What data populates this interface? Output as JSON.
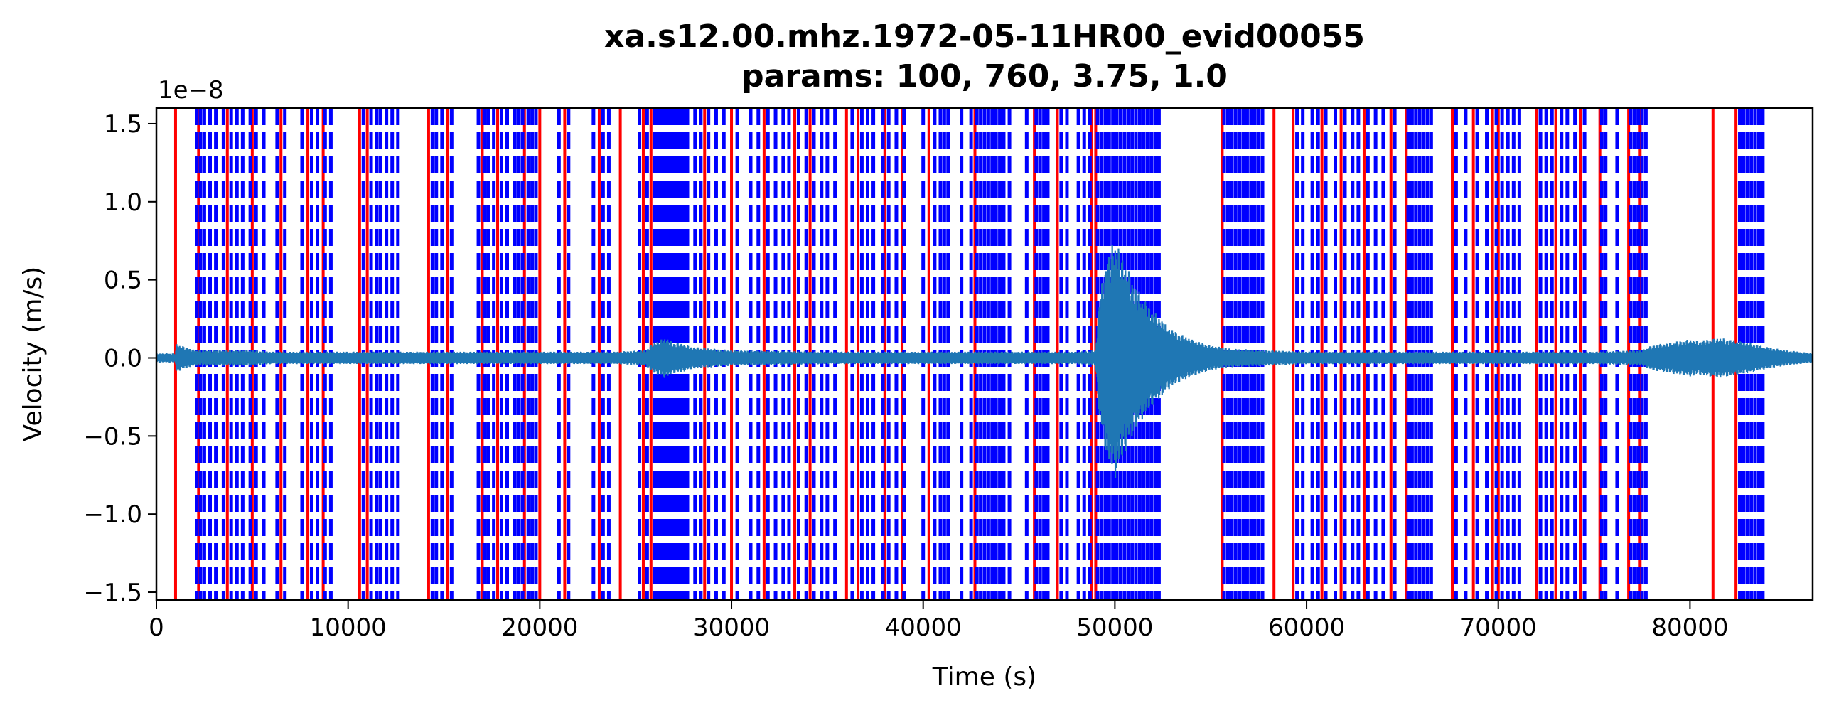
{
  "chart_data": {
    "type": "line",
    "title": "xa.s12.00.mhz.1972-05-11HR00_evid00055",
    "subtitle": "params: 100, 760, 3.75, 1.0",
    "xlabel": "Time (s)",
    "ylabel": "Velocity (m/s)",
    "offset_text": "1e−8",
    "xlim": [
      0,
      86400
    ],
    "ylim": [
      -1.55e-08,
      1.6e-08
    ],
    "x_ticks": [
      0,
      10000,
      20000,
      30000,
      40000,
      50000,
      60000,
      70000,
      80000
    ],
    "x_tick_labels": [
      "0",
      "10000",
      "20000",
      "30000",
      "40000",
      "50000",
      "60000",
      "70000",
      "80000"
    ],
    "y_ticks": [
      -1.5,
      -1.0,
      -0.5,
      0.0,
      0.5,
      1.0,
      1.5
    ],
    "y_tick_labels": [
      "−1.5",
      "−1.0",
      "−0.5",
      "0.0",
      "0.5",
      "1.0",
      "1.5"
    ],
    "grid": false,
    "colors": {
      "trace": "#1f77b4",
      "trigger_on": "#ff0000",
      "trigger_off": "#0000ff"
    },
    "series": [
      {
        "style": "trace",
        "envelope_x": [
          0,
          1000,
          1050,
          1500,
          2000,
          3000,
          4000,
          5000,
          6000,
          8000,
          10000,
          12000,
          14000,
          16000,
          18000,
          20000,
          22000,
          24000,
          25500,
          26000,
          26500,
          27000,
          27500,
          28000,
          30000,
          35000,
          40000,
          45000,
          48000,
          49000,
          49200,
          49500,
          50000,
          50500,
          51000,
          51500,
          52000,
          53000,
          54000,
          55000,
          56000,
          58000,
          60000,
          65000,
          70000,
          75000,
          77500,
          78000,
          79000,
          80000,
          80500,
          81000,
          81500,
          82000,
          82500,
          83000,
          84000,
          85000,
          86400
        ],
        "envelope_amp_1e8": [
          0.03,
          0.03,
          0.09,
          0.07,
          0.05,
          0.05,
          0.05,
          0.05,
          0.04,
          0.04,
          0.04,
          0.04,
          0.04,
          0.04,
          0.04,
          0.04,
          0.04,
          0.04,
          0.05,
          0.1,
          0.13,
          0.1,
          0.09,
          0.07,
          0.05,
          0.04,
          0.04,
          0.04,
          0.04,
          0.05,
          0.4,
          0.6,
          0.78,
          0.62,
          0.48,
          0.38,
          0.3,
          0.18,
          0.12,
          0.08,
          0.06,
          0.05,
          0.04,
          0.04,
          0.04,
          0.04,
          0.05,
          0.08,
          0.1,
          0.12,
          0.11,
          0.12,
          0.13,
          0.12,
          0.11,
          0.1,
          0.07,
          0.05,
          0.03
        ]
      },
      {
        "style": "trigger_on",
        "x": [
          1000,
          2200,
          3700,
          5000,
          6500,
          7900,
          8700,
          10600,
          11000,
          14200,
          15200,
          17000,
          17800,
          19200,
          20000,
          21300,
          23100,
          24200,
          25400,
          25800,
          28600,
          30000,
          31700,
          33300,
          34100,
          36000,
          36600,
          38000,
          38900,
          40300,
          42700,
          45800,
          47000,
          48800,
          49000,
          55600,
          58300,
          59300,
          60800,
          61800,
          63000,
          64400,
          65200,
          67600,
          68700,
          69700,
          70000,
          72000,
          73000,
          74300,
          75300,
          76800,
          77400,
          81200,
          82400
        ]
      },
      {
        "style": "trigger_off",
        "x": [
          2100,
          2300,
          2500,
          2800,
          3100,
          3500,
          3900,
          4200,
          4500,
          4900,
          5200,
          5600,
          6300,
          6700,
          7600,
          8100,
          8400,
          8800,
          9100,
          10800,
          11200,
          11500,
          11700,
          12000,
          12300,
          12600,
          14400,
          14600,
          14900,
          15400,
          16800,
          17100,
          17300,
          17600,
          18000,
          18300,
          18700,
          18900,
          19100,
          19400,
          19600,
          19800,
          21000,
          21500,
          22800,
          23300,
          23600,
          25200,
          25600,
          26000,
          26100,
          26200,
          26300,
          26400,
          26500,
          26600,
          26700,
          26800,
          26900,
          27000,
          27100,
          27200,
          27300,
          27400,
          27500,
          27600,
          27700,
          28100,
          28400,
          28800,
          29200,
          29600,
          30300,
          31000,
          31400,
          31900,
          32300,
          32700,
          33000,
          33500,
          33900,
          34300,
          34700,
          35000,
          35400,
          36300,
          36800,
          37100,
          37400,
          37900,
          38200,
          38600,
          39000,
          40000,
          40600,
          40900,
          41100,
          41300,
          42000,
          42500,
          42800,
          43000,
          43200,
          43400,
          43600,
          43800,
          44000,
          44200,
          44500,
          45400,
          45900,
          46100,
          46300,
          46500,
          47200,
          47500,
          48100,
          48400,
          48700,
          49100,
          49300,
          49500,
          49700,
          49900,
          50100,
          50300,
          50500,
          50700,
          50900,
          51100,
          51300,
          51500,
          51700,
          51900,
          52100,
          52300,
          55700,
          55900,
          56100,
          56300,
          56500,
          56700,
          56900,
          57100,
          57300,
          57500,
          57700,
          59500,
          59800,
          60300,
          60600,
          61000,
          61500,
          62000,
          62400,
          62700,
          63200,
          63600,
          64000,
          64600,
          65300,
          65500,
          65700,
          65900,
          66100,
          66300,
          66500,
          67800,
          68300,
          68900,
          69400,
          69900,
          70200,
          70500,
          70800,
          71100,
          72200,
          72500,
          72800,
          73300,
          73600,
          74000,
          74500,
          75400,
          75600,
          76200,
          76900,
          77100,
          77300,
          77500,
          77700,
          82600,
          82800,
          83000,
          83200,
          83400,
          83600,
          83800
        ]
      }
    ]
  }
}
